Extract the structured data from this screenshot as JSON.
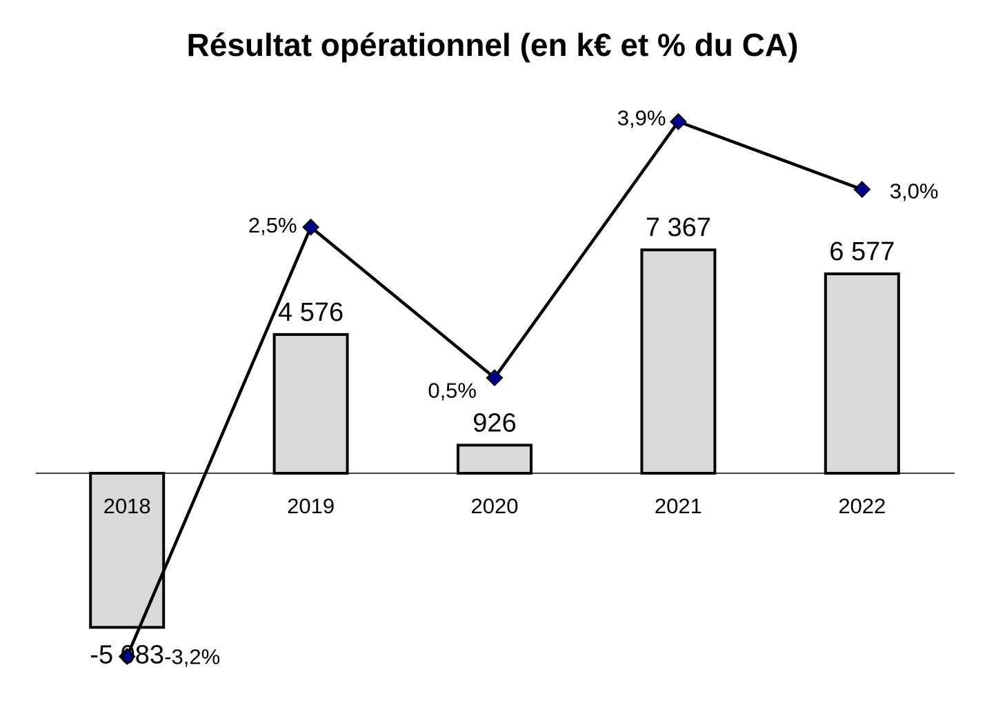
{
  "chart_data": {
    "type": "bar",
    "title": "Résultat opérationnel (en k€ et % du CA)",
    "xlabel": "",
    "ylabel": "",
    "categories": [
      "2018",
      "2019",
      "2020",
      "2021",
      "2022"
    ],
    "series": [
      {
        "type": "bar",
        "values": [
          -5083,
          4576,
          926,
          7367,
          6577
        ],
        "labels": [
          "-5 083",
          "4 576",
          "926",
          "7 367",
          "6 577"
        ]
      },
      {
        "type": "line",
        "values": [
          -3.2,
          2.5,
          0.5,
          3.9,
          3.0
        ],
        "labels": [
          "-3,2%",
          "2,5%",
          "0,5%",
          "3,9%",
          "3,0%"
        ]
      }
    ],
    "ylim": [
      -7000,
      12000
    ],
    "y2lim": [
      -4.5,
      5.3
    ],
    "grid": false,
    "legend": "none",
    "colors": {
      "bar_fill": "#d9d9d9",
      "bar_stroke": "#000000",
      "line": "#000000",
      "marker": "#00008b"
    }
  }
}
